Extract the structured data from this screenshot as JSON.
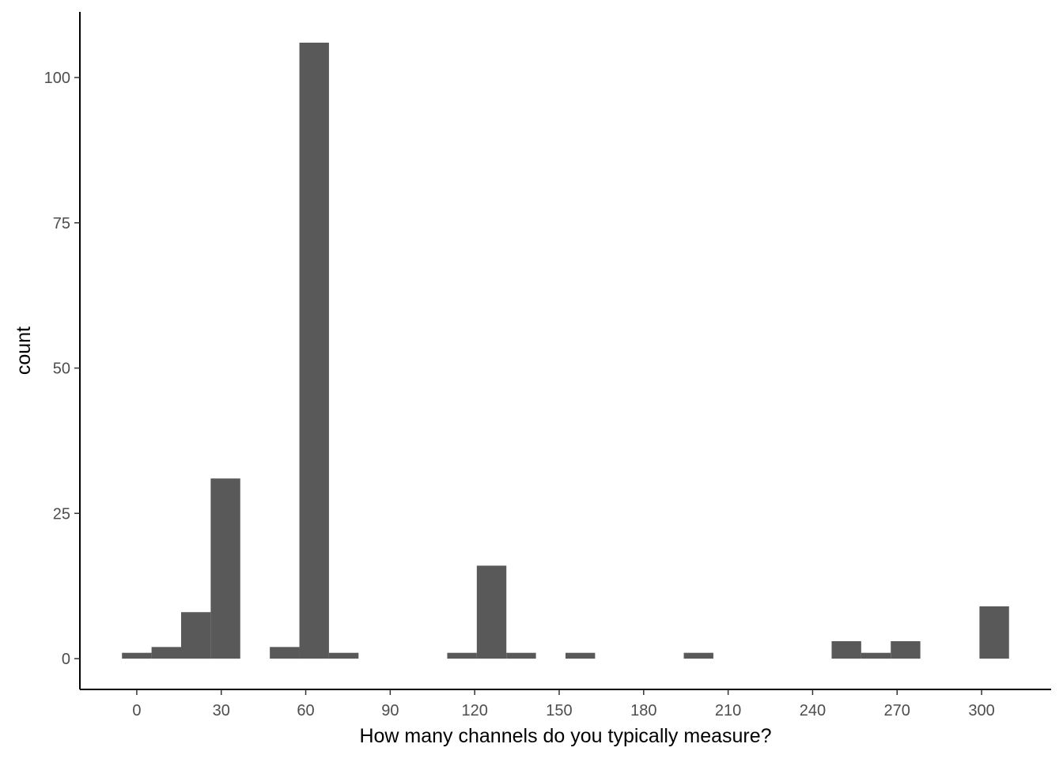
{
  "chart_data": {
    "type": "bar",
    "xlabel": "How many channels do you typically measure?",
    "ylabel": "count",
    "bin_width": 10.5,
    "bins": [
      {
        "x0": -5.25,
        "x1": 5.25,
        "count": 1
      },
      {
        "x0": 5.25,
        "x1": 15.75,
        "count": 2
      },
      {
        "x0": 15.75,
        "x1": 26.25,
        "count": 8
      },
      {
        "x0": 26.25,
        "x1": 36.75,
        "count": 31
      },
      {
        "x0": 47.25,
        "x1": 57.75,
        "count": 2
      },
      {
        "x0": 57.75,
        "x1": 68.25,
        "count": 106
      },
      {
        "x0": 68.25,
        "x1": 78.75,
        "count": 1
      },
      {
        "x0": 110.25,
        "x1": 120.75,
        "count": 1
      },
      {
        "x0": 120.75,
        "x1": 131.25,
        "count": 16
      },
      {
        "x0": 131.25,
        "x1": 141.75,
        "count": 1
      },
      {
        "x0": 152.25,
        "x1": 162.75,
        "count": 1
      },
      {
        "x0": 194.25,
        "x1": 204.75,
        "count": 1
      },
      {
        "x0": 246.75,
        "x1": 257.25,
        "count": 3
      },
      {
        "x0": 257.25,
        "x1": 267.75,
        "count": 1
      },
      {
        "x0": 267.75,
        "x1": 278.25,
        "count": 3
      },
      {
        "x0": 299.25,
        "x1": 309.75,
        "count": 9
      }
    ],
    "xlim": [
      -20.2,
      324.7
    ],
    "ylim": [
      -5.3,
      111.3
    ],
    "x_ticks": [
      0,
      30,
      60,
      90,
      120,
      150,
      180,
      210,
      240,
      270,
      300
    ],
    "y_ticks": [
      0,
      25,
      50,
      75,
      100
    ],
    "bar_color": "#595959",
    "axis_color": "#000000",
    "tick_label_color": "#4d4d4d",
    "grid": false
  }
}
